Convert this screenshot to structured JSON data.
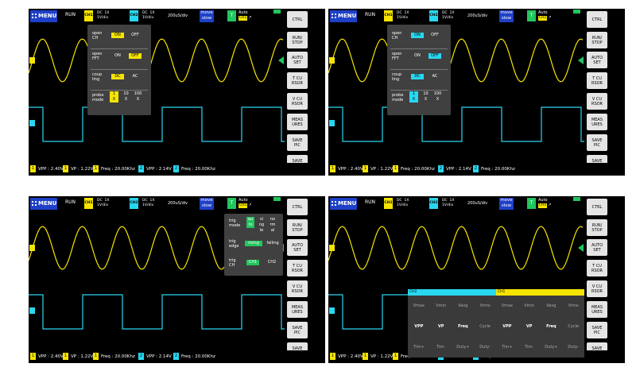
{
  "screens": [
    {
      "id": "s1",
      "popup": "channel"
    },
    {
      "id": "s2",
      "popup": "channel"
    },
    {
      "id": "s3",
      "popup": "trigger"
    },
    {
      "id": "s4",
      "popup": "measure"
    }
  ],
  "topbar": {
    "menu": "MENU",
    "run": "RUN",
    "ch1_badge": "CH1",
    "ch1_info": "DC  1X\n1V/div",
    "ch2_badge": "CH2",
    "ch2_info": "DC  1X\n1V/div",
    "timebase": "200uS/div",
    "move": "move\nslow",
    "trig_badge": "T",
    "trig_mode": "Auto",
    "trig_ch": "CH1",
    "trig_suffix": "↗"
  },
  "sidebar": [
    "CTRL",
    "RUN/\nSTOP",
    "AUTO\nSET",
    "T CU\nRSOR",
    "V CU\nRSOR",
    "MEAS\nURES",
    "SAVE\nPIC",
    "SAVE\nWAVE"
  ],
  "measurements": [
    {
      "ch": "1",
      "text": "VPP : 2.40V"
    },
    {
      "ch": "1",
      "text": "VP : 1.22V"
    },
    {
      "ch": "1",
      "text": "Freq : 20.00Khz"
    },
    {
      "ch": "2",
      "text": "VPP : 2.14V"
    },
    {
      "ch": "2",
      "text": "Freq : 20.00Khz"
    }
  ],
  "channel_popup": {
    "rows": [
      {
        "label": "open\nCH",
        "options": [
          "ON",
          "OFF"
        ]
      },
      {
        "label": "open\nFFT",
        "options": [
          "ON",
          "OFF"
        ]
      },
      {
        "label": "coup\nling",
        "options": [
          "DC",
          "AC"
        ]
      },
      {
        "label": "probe\nmode",
        "options": [
          "1\nX",
          "10\nX",
          "100\nX"
        ]
      }
    ]
  },
  "trigger_popup": {
    "rows": [
      {
        "label": "trig\nmode",
        "options": [
          "au\nto",
          "si\nng\nle",
          "no\nrm\nal"
        ]
      },
      {
        "label": "trig\nedge",
        "options": [
          "rising",
          "falling"
        ]
      },
      {
        "label": "trig\nCH",
        "options": [
          "CH1",
          "CH2"
        ]
      }
    ]
  },
  "measure_panel": {
    "ch2_header": "CH2",
    "ch1_header": "CH1",
    "rows": [
      [
        "Vmax",
        "Vmin",
        "Vavg",
        "Vrms",
        "Vmax",
        "Vmin",
        "Vavg",
        "Vrms"
      ],
      [
        "VPP",
        "VP",
        "Freq",
        "Cycle",
        "VPP",
        "VP",
        "Freq",
        "Cycle"
      ],
      [
        "Tim+",
        "Tim-",
        "Duty+",
        "Duty-",
        "Tim+",
        "Tim-",
        "Duty+",
        "Duty-"
      ]
    ],
    "active": [
      "VPP",
      "Freq",
      "VP"
    ]
  },
  "colors": {
    "ch1": "#f5e400",
    "ch2": "#28d7f0",
    "accent": "#1e40c8",
    "trig": "#22c55e",
    "popup": "#404040"
  }
}
